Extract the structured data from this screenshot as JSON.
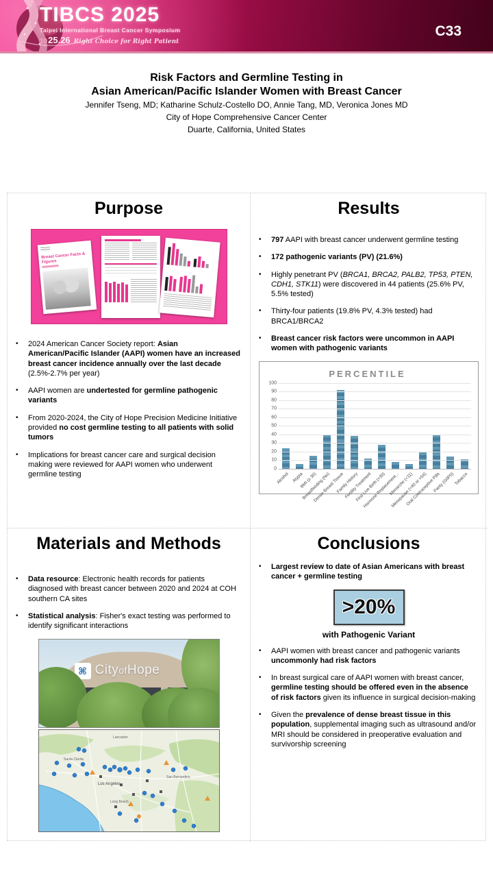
{
  "header": {
    "code": "C33",
    "logo": {
      "title": "TIBCS 2025",
      "subtitle": "Taipei International Breast Cancer Symposium",
      "month": "10",
      "days": "25.26",
      "tagline": "Right Choice for Right Patient"
    },
    "colors": {
      "pink": "#ef1c85",
      "dark_maroon": "#43021a",
      "strip": "#d98ca6"
    }
  },
  "title_block": {
    "title_line1": "Risk Factors and Germline Testing in",
    "title_line2": "Asian American/Pacific Islander Women with Breast Cancer",
    "authors": "Jennifer Tseng, MD; Katharine Schulz-Costello DO, Annie Tang, MD, Veronica Jones MD",
    "affiliation": "City of Hope Comprehensive Cancer Center",
    "location": "Duarte, California, United States"
  },
  "purpose": {
    "heading": "Purpose",
    "figure_cover_title": "Breast Cancer Facts & Figures",
    "bullets": [
      [
        {
          "t": "2024 American Cancer Society report: "
        },
        {
          "t": "Asian American/Pacific Islander (AAPI) women have an increased breast cancer incidence annually over the last decade",
          "b": 1
        },
        {
          "t": " (2.5%-2.7% per year)"
        }
      ],
      [
        {
          "t": "AAPI women are "
        },
        {
          "t": "undertested for germline pathogenic variants",
          "b": 1
        }
      ],
      [
        {
          "t": "From 2020-2024, the City of Hope Precision Medicine Initiative provided "
        },
        {
          "t": "no cost germline testing to all patients with solid tumors",
          "b": 1
        }
      ],
      [
        {
          "t": "Implications for breast cancer care and surgical decision making were reviewed for AAPI women who underwent germline testing"
        }
      ]
    ]
  },
  "results": {
    "heading": "Results",
    "bullets": [
      [
        {
          "t": "797",
          "b": 1
        },
        {
          "t": " AAPI with breast cancer underwent germline testing"
        }
      ],
      [
        {
          "t": "172 pathogenic variants (PV) (21.6%)",
          "b": 1
        }
      ],
      [
        {
          "t": "Highly penetrant PV ("
        },
        {
          "t": "BRCA1, BRCA2, PALB2, TP53, PTEN, CDH1, STK11",
          "i": 1
        },
        {
          "t": ") were discovered in 44 patients (25.6% PV, 5.5% tested)"
        }
      ],
      [
        {
          "t": "Thirty-four patients (19.8% PV, 4.3% tested) had BRCA1/BRCA2"
        }
      ],
      [
        {
          "t": "Breast cancer risk factors were uncommon in AAPI women with pathogenic variants",
          "b": 1
        }
      ]
    ]
  },
  "chart_data": {
    "type": "bar",
    "title": "PERCENTILE",
    "categories": [
      "Alcohol",
      "Atypia",
      "BMI (≥ 30)",
      "Breastfeeding (No)",
      "Dense Breast Tissue",
      "Family History",
      "Fertility Treatment",
      "First Live Birth (>30)",
      "Hormone Replacement...",
      "Menarche (<11)",
      "Menopause (<40 or >54)",
      "Oral Contraceptive Pills",
      "Parity (G0P0)",
      "Tobacco"
    ],
    "values": [
      24,
      5,
      15,
      40,
      92,
      38,
      12,
      28,
      8,
      5,
      19,
      40,
      14,
      11
    ],
    "xlabel": "",
    "ylabel": "",
    "ylim": [
      0,
      100
    ],
    "ytick_step": 10,
    "grid": true,
    "legend_position": "none",
    "bar_color": "#4d86a5"
  },
  "methods": {
    "heading": "Materials and Methods",
    "bullets": [
      [
        {
          "t": "Data resource",
          "b": 1
        },
        {
          "t": ": Electronic health records for patients diagnosed with breast cancer between 2020 and 2024 at COH southern CA sites"
        }
      ],
      [
        {
          "t": "Statistical analysis",
          "b": 1
        },
        {
          "t": ": Fisher's exact testing was performed to identify significant interactions"
        }
      ]
    ],
    "photo_sign_city": "City",
    "photo_sign_of": "of",
    "photo_sign_hope": "Hope",
    "map_labels": {
      "lancaster": "Lancaster",
      "santa_clarita": "Santa Clarita",
      "los_angeles": "Los Angeles",
      "san_bernardino": "San Bernardino",
      "long_beach": "Long Beach"
    }
  },
  "conclusions": {
    "heading": "Conclusions",
    "bullets_top": [
      [
        {
          "t": "Largest review to date of Asian Americans with breast cancer + germline testing",
          "b": 1
        }
      ]
    ],
    "stat_value": ">20%",
    "stat_caption": "with Pathogenic Variant",
    "bullets": [
      [
        {
          "t": "AAPI women with breast cancer and pathogenic variants "
        },
        {
          "t": "uncommonly had risk factors",
          "b": 1
        }
      ],
      [
        {
          "t": "In breast surgical care of AAPI women with breast cancer, "
        },
        {
          "t": "germline testing should be offered even in the absence of risk factors",
          "b": 1
        },
        {
          "t": " given its influence in surgical decision-making"
        }
      ],
      [
        {
          "t": "Given the "
        },
        {
          "t": "prevalence of dense breast tissue in this population",
          "b": 1
        },
        {
          "t": ", supplemental imaging such as ultrasound and/or MRI should be considered in preoperative evaluation and survivorship screening"
        }
      ]
    ]
  }
}
